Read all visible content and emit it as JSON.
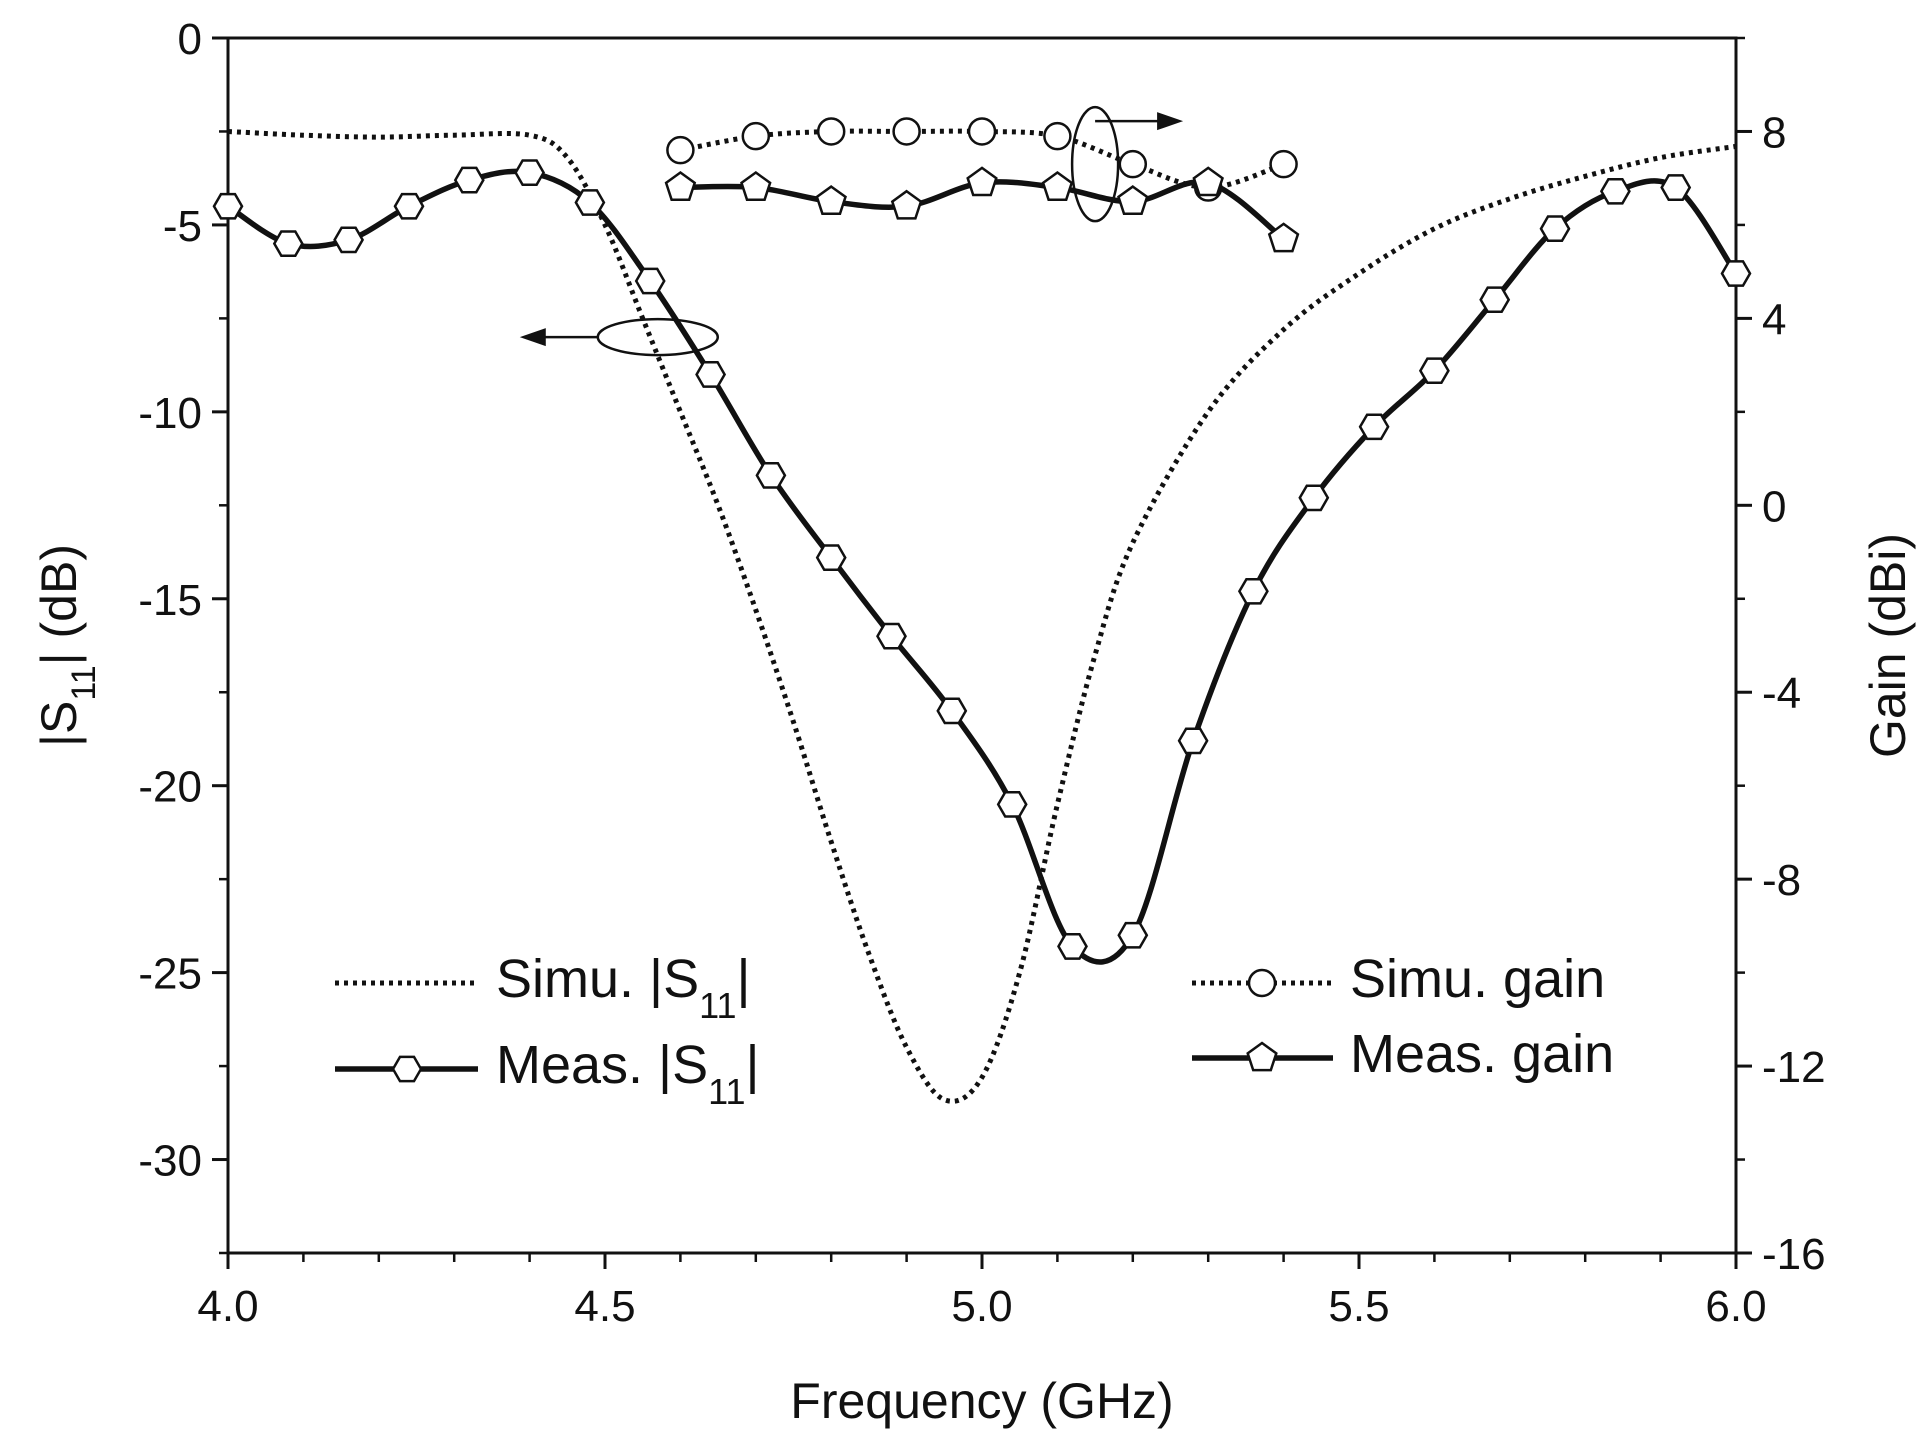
{
  "chart_data": {
    "type": "line",
    "title": "",
    "xlabel": "Frequency (GHz)",
    "ylabel_left": {
      "prefix": "|S",
      "sub": "11",
      "suffix": "| (dB)"
    },
    "ylabel_right": "Gain (dBi)",
    "xlim": [
      4.0,
      6.0
    ],
    "ylim_left": [
      -32.5,
      0
    ],
    "ylim_right": [
      -16,
      10
    ],
    "x_ticks": [
      {
        "v": 4.0,
        "label": "4.0"
      },
      {
        "v": 4.5,
        "label": "4.5"
      },
      {
        "v": 5.0,
        "label": "5.0"
      },
      {
        "v": 5.5,
        "label": "5.5"
      },
      {
        "v": 6.0,
        "label": "6.0"
      }
    ],
    "y_left_ticks": [
      {
        "v": 0,
        "label": "0"
      },
      {
        "v": -5,
        "label": "-5"
      },
      {
        "v": -10,
        "label": "-10"
      },
      {
        "v": -15,
        "label": "-15"
      },
      {
        "v": -20,
        "label": "-20"
      },
      {
        "v": -25,
        "label": "-25"
      },
      {
        "v": -30,
        "label": "-30"
      }
    ],
    "y_right_ticks": [
      {
        "v": 8,
        "label": "8"
      },
      {
        "v": 4,
        "label": "4"
      },
      {
        "v": 0,
        "label": "0"
      },
      {
        "v": -4,
        "label": "-4"
      },
      {
        "v": -8,
        "label": "-8"
      },
      {
        "v": -12,
        "label": "-12"
      },
      {
        "v": -16,
        "label": "-16"
      }
    ],
    "series": [
      {
        "name": "Simu. |S11|",
        "axis": "left",
        "style": "dotted",
        "marker": "none",
        "x": [
          4.0,
          4.1,
          4.2,
          4.3,
          4.4,
          4.45,
          4.5,
          4.55,
          4.6,
          4.65,
          4.7,
          4.75,
          4.8,
          4.85,
          4.9,
          4.95,
          5.0,
          5.05,
          5.1,
          5.15,
          5.2,
          5.3,
          5.4,
          5.5,
          5.6,
          5.7,
          5.8,
          5.9,
          6.0
        ],
        "values": [
          -2.5,
          -2.6,
          -2.65,
          -2.6,
          -2.6,
          -3.2,
          -5.0,
          -7.5,
          -10.0,
          -12.5,
          -15.3,
          -18.3,
          -21.5,
          -24.5,
          -27.0,
          -28.4,
          -27.8,
          -25.0,
          -20.5,
          -16.5,
          -13.5,
          -10.0,
          -7.8,
          -6.3,
          -5.1,
          -4.3,
          -3.7,
          -3.2,
          -2.9
        ]
      },
      {
        "name": "Meas. |S11|",
        "axis": "left",
        "style": "solid",
        "marker": "hexagon",
        "x": [
          4.0,
          4.08,
          4.16,
          4.24,
          4.32,
          4.4,
          4.48,
          4.56,
          4.64,
          4.72,
          4.8,
          4.88,
          4.96,
          5.04,
          5.12,
          5.2,
          5.28,
          5.36,
          5.44,
          5.52,
          5.6,
          5.68,
          5.76,
          5.84,
          5.92,
          6.0
        ],
        "values": [
          -4.5,
          -5.5,
          -5.4,
          -4.5,
          -3.8,
          -3.6,
          -4.4,
          -6.5,
          -9.0,
          -11.7,
          -13.9,
          -16.0,
          -18.0,
          -20.5,
          -24.3,
          -24.0,
          -18.8,
          -14.8,
          -12.3,
          -10.4,
          -8.9,
          -7.0,
          -5.1,
          -4.1,
          -4.0,
          -6.3
        ]
      },
      {
        "name": "Simu. gain",
        "axis": "right",
        "style": "dotted",
        "marker": "circle",
        "x": [
          4.6,
          4.7,
          4.8,
          4.9,
          5.0,
          5.1,
          5.2,
          5.3,
          5.4
        ],
        "values": [
          7.6,
          7.9,
          8.0,
          8.0,
          8.0,
          7.9,
          7.3,
          6.8,
          7.3
        ]
      },
      {
        "name": "Meas. gain",
        "axis": "right",
        "style": "solid",
        "marker": "pentagon",
        "x": [
          4.6,
          4.7,
          4.8,
          4.9,
          5.0,
          5.1,
          5.2,
          5.3,
          5.4
        ],
        "values": [
          6.8,
          6.8,
          6.5,
          6.4,
          6.9,
          6.8,
          6.5,
          6.9,
          5.7
        ]
      }
    ],
    "legend": {
      "left_group": {
        "placement": "bottom-left",
        "entries": [
          "Simu. |S11|",
          "Meas. |S11|"
        ]
      },
      "right_group": {
        "placement": "bottom-right",
        "entries": [
          "Simu. gain",
          "Meas. gain"
        ]
      }
    },
    "annotations": [
      {
        "type": "ellipse-arrow",
        "target_series": "Meas. |S11|",
        "points_to": "left axis"
      },
      {
        "type": "ellipse-arrow",
        "target_series": "Simu. gain / Meas. gain",
        "points_to": "right axis"
      }
    ],
    "grid": false
  }
}
